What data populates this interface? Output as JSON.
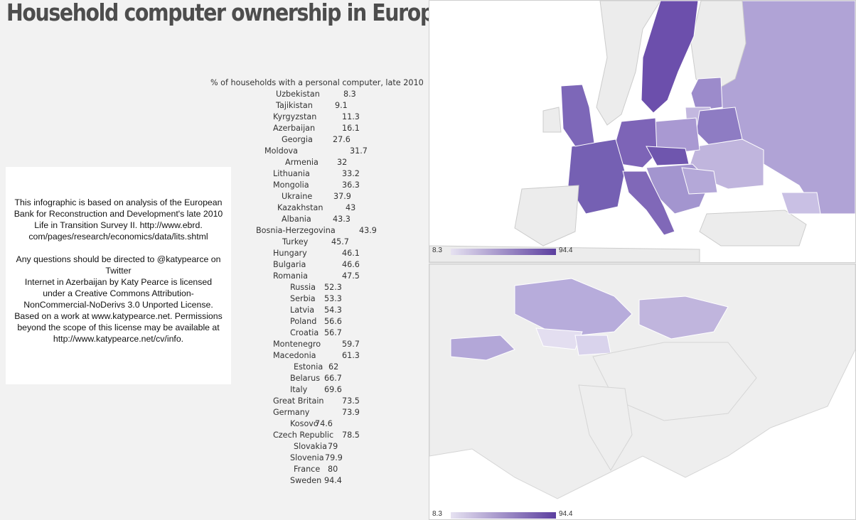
{
  "title": "Household computer ownership in Europe",
  "info": {
    "source": "This infographic is based on analysis of the European Bank for Reconstruction and Development's late 2010 Life in Transition Survey II. http://www.ebrd. com/pages/research/economics/data/lits.shtml",
    "contact": "Any questions should be directed to @katypearce on Twitter",
    "license": "Internet in Azerbaijan by Katy Pearce is licensed under a Creative Commons Attribution-NonCommercial-NoDerivs 3.0 Unported License. Based on a work at www.katypearce.net. Permissions beyond the scope of this license may be available at http://www.katypearce.net/cv/info."
  },
  "list_heading": "% of households with a personal computer, late 2010",
  "countries": [
    {
      "name": "Uzbekistan",
      "value": "8.3"
    },
    {
      "name": "Tajikistan",
      "value": "9.1"
    },
    {
      "name": "Kyrgyzstan",
      "value": "11.3"
    },
    {
      "name": "Azerbaijan",
      "value": "16.1"
    },
    {
      "name": "Georgia",
      "value": "27.6"
    },
    {
      "name": "Moldova",
      "value": "31.7"
    },
    {
      "name": "Armenia",
      "value": "32"
    },
    {
      "name": "Lithuania",
      "value": "33.2"
    },
    {
      "name": "Mongolia",
      "value": "36.3"
    },
    {
      "name": "Ukraine",
      "value": "37.9"
    },
    {
      "name": "Kazakhstan",
      "value": "43"
    },
    {
      "name": "Albania",
      "value": "43.3"
    },
    {
      "name": "Bosnia-Herzegovina",
      "value": "43.9"
    },
    {
      "name": "Turkey",
      "value": "45.7"
    },
    {
      "name": "Hungary",
      "value": "46.1"
    },
    {
      "name": "Bulgaria",
      "value": "46.6"
    },
    {
      "name": "Romania",
      "value": "47.5"
    },
    {
      "name": "Russia",
      "value": "52.3"
    },
    {
      "name": "Serbia",
      "value": "53.3"
    },
    {
      "name": "Latvia",
      "value": "54.3"
    },
    {
      "name": "Poland",
      "value": "56.6"
    },
    {
      "name": "Croatia",
      "value": "56.7"
    },
    {
      "name": "Montenegro",
      "value": "59.7"
    },
    {
      "name": "Macedonia",
      "value": "61.3"
    },
    {
      "name": "Estonia",
      "value": "62"
    },
    {
      "name": "Belarus",
      "value": "66.7"
    },
    {
      "name": "Italy",
      "value": "69.6"
    },
    {
      "name": "Great Britain",
      "value": "73.5"
    },
    {
      "name": "Germany",
      "value": "73.9"
    },
    {
      "name": "Kosovo",
      "value": "74.6"
    },
    {
      "name": "Czech Republic",
      "value": "78.5"
    },
    {
      "name": "Slovakia",
      "value": "79"
    },
    {
      "name": "Slovenia",
      "value": "79.9"
    },
    {
      "name": "France",
      "value": "80"
    },
    {
      "name": "Sweden",
      "value": "94.4"
    }
  ],
  "map_scale": {
    "min": "8.3",
    "max": "94.4"
  },
  "colors": {
    "scale_low": "#e6e2f1",
    "scale_high": "#5c3f9f",
    "land_no_data": "#eeeeee",
    "page_bg": "#f2f2f2"
  }
}
